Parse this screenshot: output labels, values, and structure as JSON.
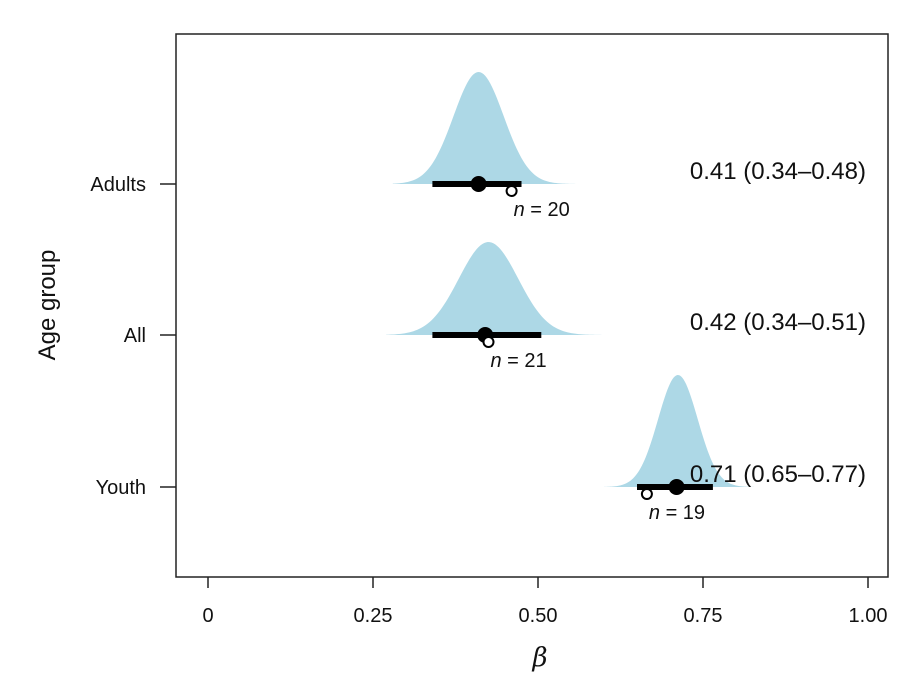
{
  "chart_data": {
    "type": "posterior-interval",
    "title": "",
    "xlabel": "β",
    "ylabel": "Age group",
    "xlim": [
      0,
      1
    ],
    "xticks": [
      0,
      0.25,
      0.5,
      0.75,
      1.0
    ],
    "xtick_labels": [
      "0",
      "0.25",
      "0.50",
      "0.75",
      "1.00"
    ],
    "grid": false,
    "colors": {
      "density": "#add8e6",
      "ink": "#000000"
    },
    "groups": [
      {
        "name": "Adults",
        "estimate": 0.41,
        "ci_low": 0.34,
        "ci_high": 0.48,
        "label": "0.41 (0.34–0.48)",
        "n_label": "n = 20",
        "n_prefix": "n",
        "n_suffix": " = 20",
        "open_point": 0.46,
        "bar_range": [
          0.34,
          0.475
        ],
        "density": {
          "mean": 0.41,
          "sd": 0.038,
          "range": [
            0.28,
            0.58
          ],
          "relative_height": 1.0
        }
      },
      {
        "name": "All",
        "estimate": 0.42,
        "ci_low": 0.34,
        "ci_high": 0.51,
        "label": "0.42 (0.34–0.51)",
        "n_label": "n = 21",
        "n_prefix": "n",
        "n_suffix": " = 21",
        "open_point": 0.425,
        "bar_range": [
          0.34,
          0.505
        ],
        "density": {
          "mean": 0.425,
          "sd": 0.045,
          "range": [
            0.27,
            0.6
          ],
          "relative_height": 0.83
        }
      },
      {
        "name": "Youth",
        "estimate": 0.71,
        "ci_low": 0.65,
        "ci_high": 0.77,
        "label": "0.71 (0.65–0.77)",
        "n_label": "n = 19",
        "n_prefix": "n",
        "n_suffix": " = 19",
        "open_point": 0.665,
        "bar_range": [
          0.65,
          0.765
        ],
        "density": {
          "mean": 0.712,
          "sd": 0.03,
          "range": [
            0.6,
            0.83
          ],
          "relative_height": 1.0
        }
      }
    ]
  }
}
